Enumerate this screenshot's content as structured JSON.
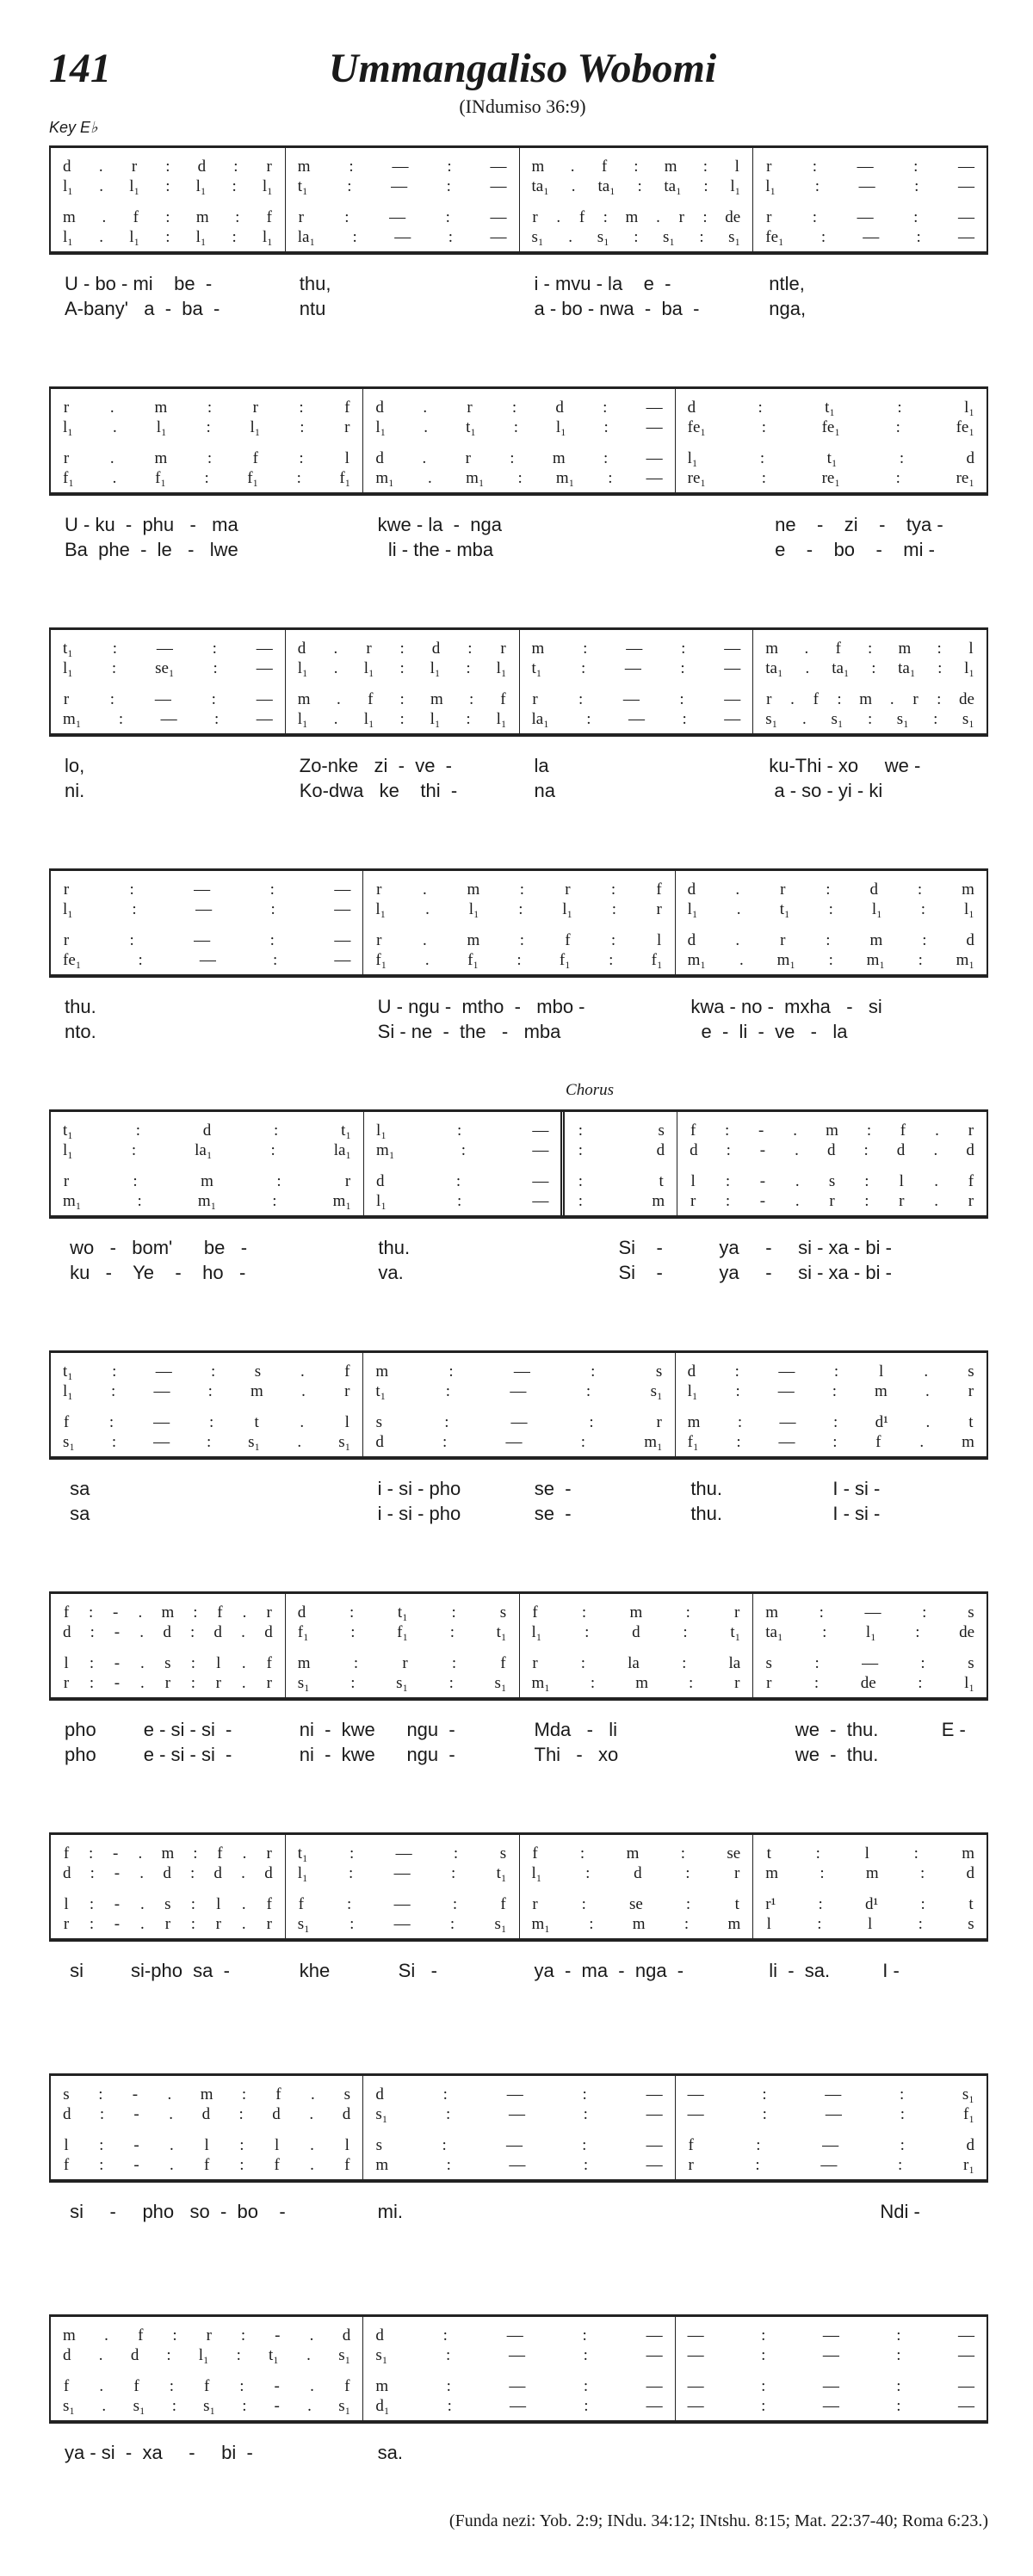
{
  "header": {
    "number": "141",
    "title": "Ummangaliso Wobomi",
    "subtitle": "(INdumiso 36:9)",
    "key": "Key E♭"
  },
  "chorus_label": "Chorus",
  "systems": [
    {
      "measures": [
        [
          "d . r : d : r",
          "l₁ . l₁ : l₁ : l₁",
          "m . f : m : f",
          "l₁ . l₁ : l₁ : l₁"
        ],
        [
          "m : — : —",
          "t₁ : — : —",
          "r : — : —",
          "la₁ : — : —"
        ],
        [
          "m . f : m : l",
          "ta₁ . ta₁ : ta₁ : l₁",
          "r . f : m . r : de",
          "s₁ . s₁ : s₁ : s₁"
        ],
        [
          "r : — : —",
          "l₁ : — : —",
          "r : — : —",
          "fe₁ : — : —"
        ]
      ],
      "lyrics": [
        [
          "U - bo - mi    be  -",
          "thu,",
          "i - mvu - la    e  -",
          "ntle,"
        ],
        [
          "A-bany'   a  -  ba  -",
          "ntu",
          "a - bo - nwa  -  ba  -",
          "nga,"
        ]
      ]
    },
    {
      "measures": [
        [
          "r . m : r : f",
          "l₁ . l₁ : l₁ : r",
          "r . m : f : l",
          "f₁ . f₁ : f₁ : f₁"
        ],
        [
          "d . r : d : —",
          "l₁ . t₁ : l₁ : —",
          "d . r : m : —",
          "m₁ . m₁ : m₁ : —"
        ],
        [
          "d : t₁ : l₁",
          "fe₁ : fe₁ : fe₁",
          "l₁ : t₁ : d",
          "re₁ : re₁ : re₁"
        ]
      ],
      "lyrics": [
        [
          "U - ku  -  phu   -   ma",
          "kwe - la  -  nga",
          "                ne    -    zi    -    tya -"
        ],
        [
          "Ba  phe  -  le   -   lwe",
          "  li - the - mba",
          "                e    -    bo    -    mi -"
        ]
      ]
    },
    {
      "measures": [
        [
          "t₁ : — : —",
          "l₁ : se₁ : —",
          "r : — : —",
          "m₁ : — : —"
        ],
        [
          "d . r : d : r",
          "l₁ . l₁ : l₁ : l₁",
          "m . f : m : f",
          "l₁ . l₁ : l₁ : l₁"
        ],
        [
          "m : — : —",
          "t₁ : — : —",
          "r : — : —",
          "la₁ : — : —"
        ],
        [
          "m . f : m : l",
          "ta₁ . ta₁ : ta₁ : l₁",
          "r . f : m . r : de",
          "s₁ . s₁ : s₁ : s₁"
        ]
      ],
      "lyrics": [
        [
          "lo,",
          "Zo-nke   zi  -  ve  -",
          "la",
          "ku-Thi - xo     we -"
        ],
        [
          "ni.",
          "Ko-dwa   ke    thi  -",
          "na",
          " a - so - yi - ki"
        ]
      ]
    },
    {
      "measures": [
        [
          "r : — : —",
          "l₁ : — : —",
          "r : — : —",
          "fe₁ : — : —"
        ],
        [
          "r . m : r : f",
          "l₁ . l₁ : l₁ : r",
          "r . m : f : l",
          "f₁ . f₁ : f₁ : f₁"
        ],
        [
          "d . r : d : m",
          "l₁ . t₁ : l₁ : l₁",
          "d . r : m : d",
          "m₁ . m₁ : m₁ : m₁"
        ]
      ],
      "lyrics": [
        [
          "thu.",
          "U - ngu -  mtho  -   mbo -",
          "kwa - no -  mxha   -   si"
        ],
        [
          "nto.",
          "Si - ne  -  the   -   mba",
          "  e  -  li  -  ve   -   la"
        ]
      ]
    },
    {
      "measures": [
        [
          "t₁ : d : t₁",
          "l₁ : la₁ : la₁",
          "r : m : r",
          "m₁ : m₁ : m₁"
        ],
        [
          "l₁ : —",
          "m₁ : —",
          "d : —",
          "l₁ : —"
        ],
        [
          ": s",
          ": d",
          ": t",
          ": m"
        ],
        [
          "f : - . m : f . r",
          "d : - . d : d . d",
          "l : - . s : l . f",
          "r : - . r : r . r"
        ]
      ],
      "lyrics": [
        [
          " wo   -   bom'      be   -",
          "thu.",
          "        Si    -",
          "     ya     -     si - xa - bi -"
        ],
        [
          " ku   -    Ye    -    ho   -",
          "va.",
          "        Si    -",
          "     ya     -     si - xa - bi -"
        ]
      ]
    },
    {
      "measures": [
        [
          "t₁ : — : s . f",
          "l₁ : — : m . r",
          "f : — : t . l",
          "s₁ : — : s₁ . s₁"
        ],
        [
          "m : — : s",
          "t₁ : — : s₁",
          "s : — : r",
          "d : — : m₁"
        ],
        [
          "d : — : l . s",
          "l₁ : — : m . r",
          "m : — : d¹ . t",
          "f₁ : — : f . m"
        ]
      ],
      "lyrics": [
        [
          " sa",
          "i - si - pho              se  -",
          "thu.                     I - si -"
        ],
        [
          " sa",
          "i - si - pho              se  -",
          "thu.                     I - si -"
        ]
      ]
    },
    {
      "measures": [
        [
          "f : - . m : f . r",
          "d : - . d : d . d",
          "l : - . s : l . f",
          "r : - . r : r . r"
        ],
        [
          "d : t₁ : s",
          "f₁ : f₁ : t₁",
          "m : r : f",
          "s₁ : s₁ : s₁"
        ],
        [
          "f : m : r",
          "l₁ : d : t₁",
          "r : la : la",
          "m₁ : m : r"
        ],
        [
          "m : — : s",
          "ta₁ : l₁ : de",
          "s : — : s",
          "r : de : l₁"
        ]
      ],
      "lyrics": [
        [
          "pho         e - si - si  -",
          "ni  -  kwe      ngu  -",
          "Mda   -   li",
          "     we  -  thu.            E -"
        ],
        [
          "pho         e - si - si  -",
          "ni  -  kwe      ngu  -",
          "Thi   -   xo",
          "     we  -  thu."
        ]
      ]
    },
    {
      "measures": [
        [
          "f : - . m : f . r",
          "d : - . d : d . d",
          "l : - . s : l . f",
          "r : - . r : r . r"
        ],
        [
          "t₁ : — : s",
          "l₁ : — : t₁",
          "f : — : f",
          "s₁ : — : s₁"
        ],
        [
          "f : m : se",
          "l₁ : d : r",
          "r : se : t",
          "m₁ : m : m"
        ],
        [
          "t : l : m",
          "m : m : d",
          "r¹ : d¹ : t",
          "l : l : s"
        ]
      ],
      "lyrics": [
        [
          " si         si-pho  sa  -",
          "khe             Si   -",
          "ya  -  ma  -  nga  -",
          "li  -  sa.          I -"
        ]
      ]
    },
    {
      "measures": [
        [
          "s : - . m : f . s",
          "d : - . d : d . d",
          "l : - . l : l . l",
          "f : - . f : f . f"
        ],
        [
          "d : — : —",
          "s₁ : — : —",
          "s : — : —",
          "m : — : —"
        ],
        [
          "— : — : s₁",
          "— : — : f₁",
          "f : — : d",
          "r : — : r₁"
        ]
      ],
      "lyrics": [
        [
          " si     -     pho   so  -  bo    -",
          "mi.",
          "                                    Ndi -"
        ]
      ]
    },
    {
      "measures": [
        [
          "m . f : r : - . d",
          "d . d : l₁ : t₁ . s₁",
          "f . f : f : - . f",
          "s₁ . s₁ : s₁ : - . s₁"
        ],
        [
          "d : — : —",
          "s₁ : — : —",
          "m : — : —",
          "d₁ : — : —"
        ],
        [
          "— : — : —",
          "— : — : —",
          "— : — : —",
          "— : — : —"
        ]
      ],
      "lyrics": [
        [
          "ya - si  -  xa     -     bi  -",
          "sa.",
          ""
        ]
      ]
    }
  ],
  "footnote": "(Funda nezi: Yob. 2:9; INdu. 34:12; INtshu. 8:15; Mat. 22:37-40; Roma 6:23.)"
}
